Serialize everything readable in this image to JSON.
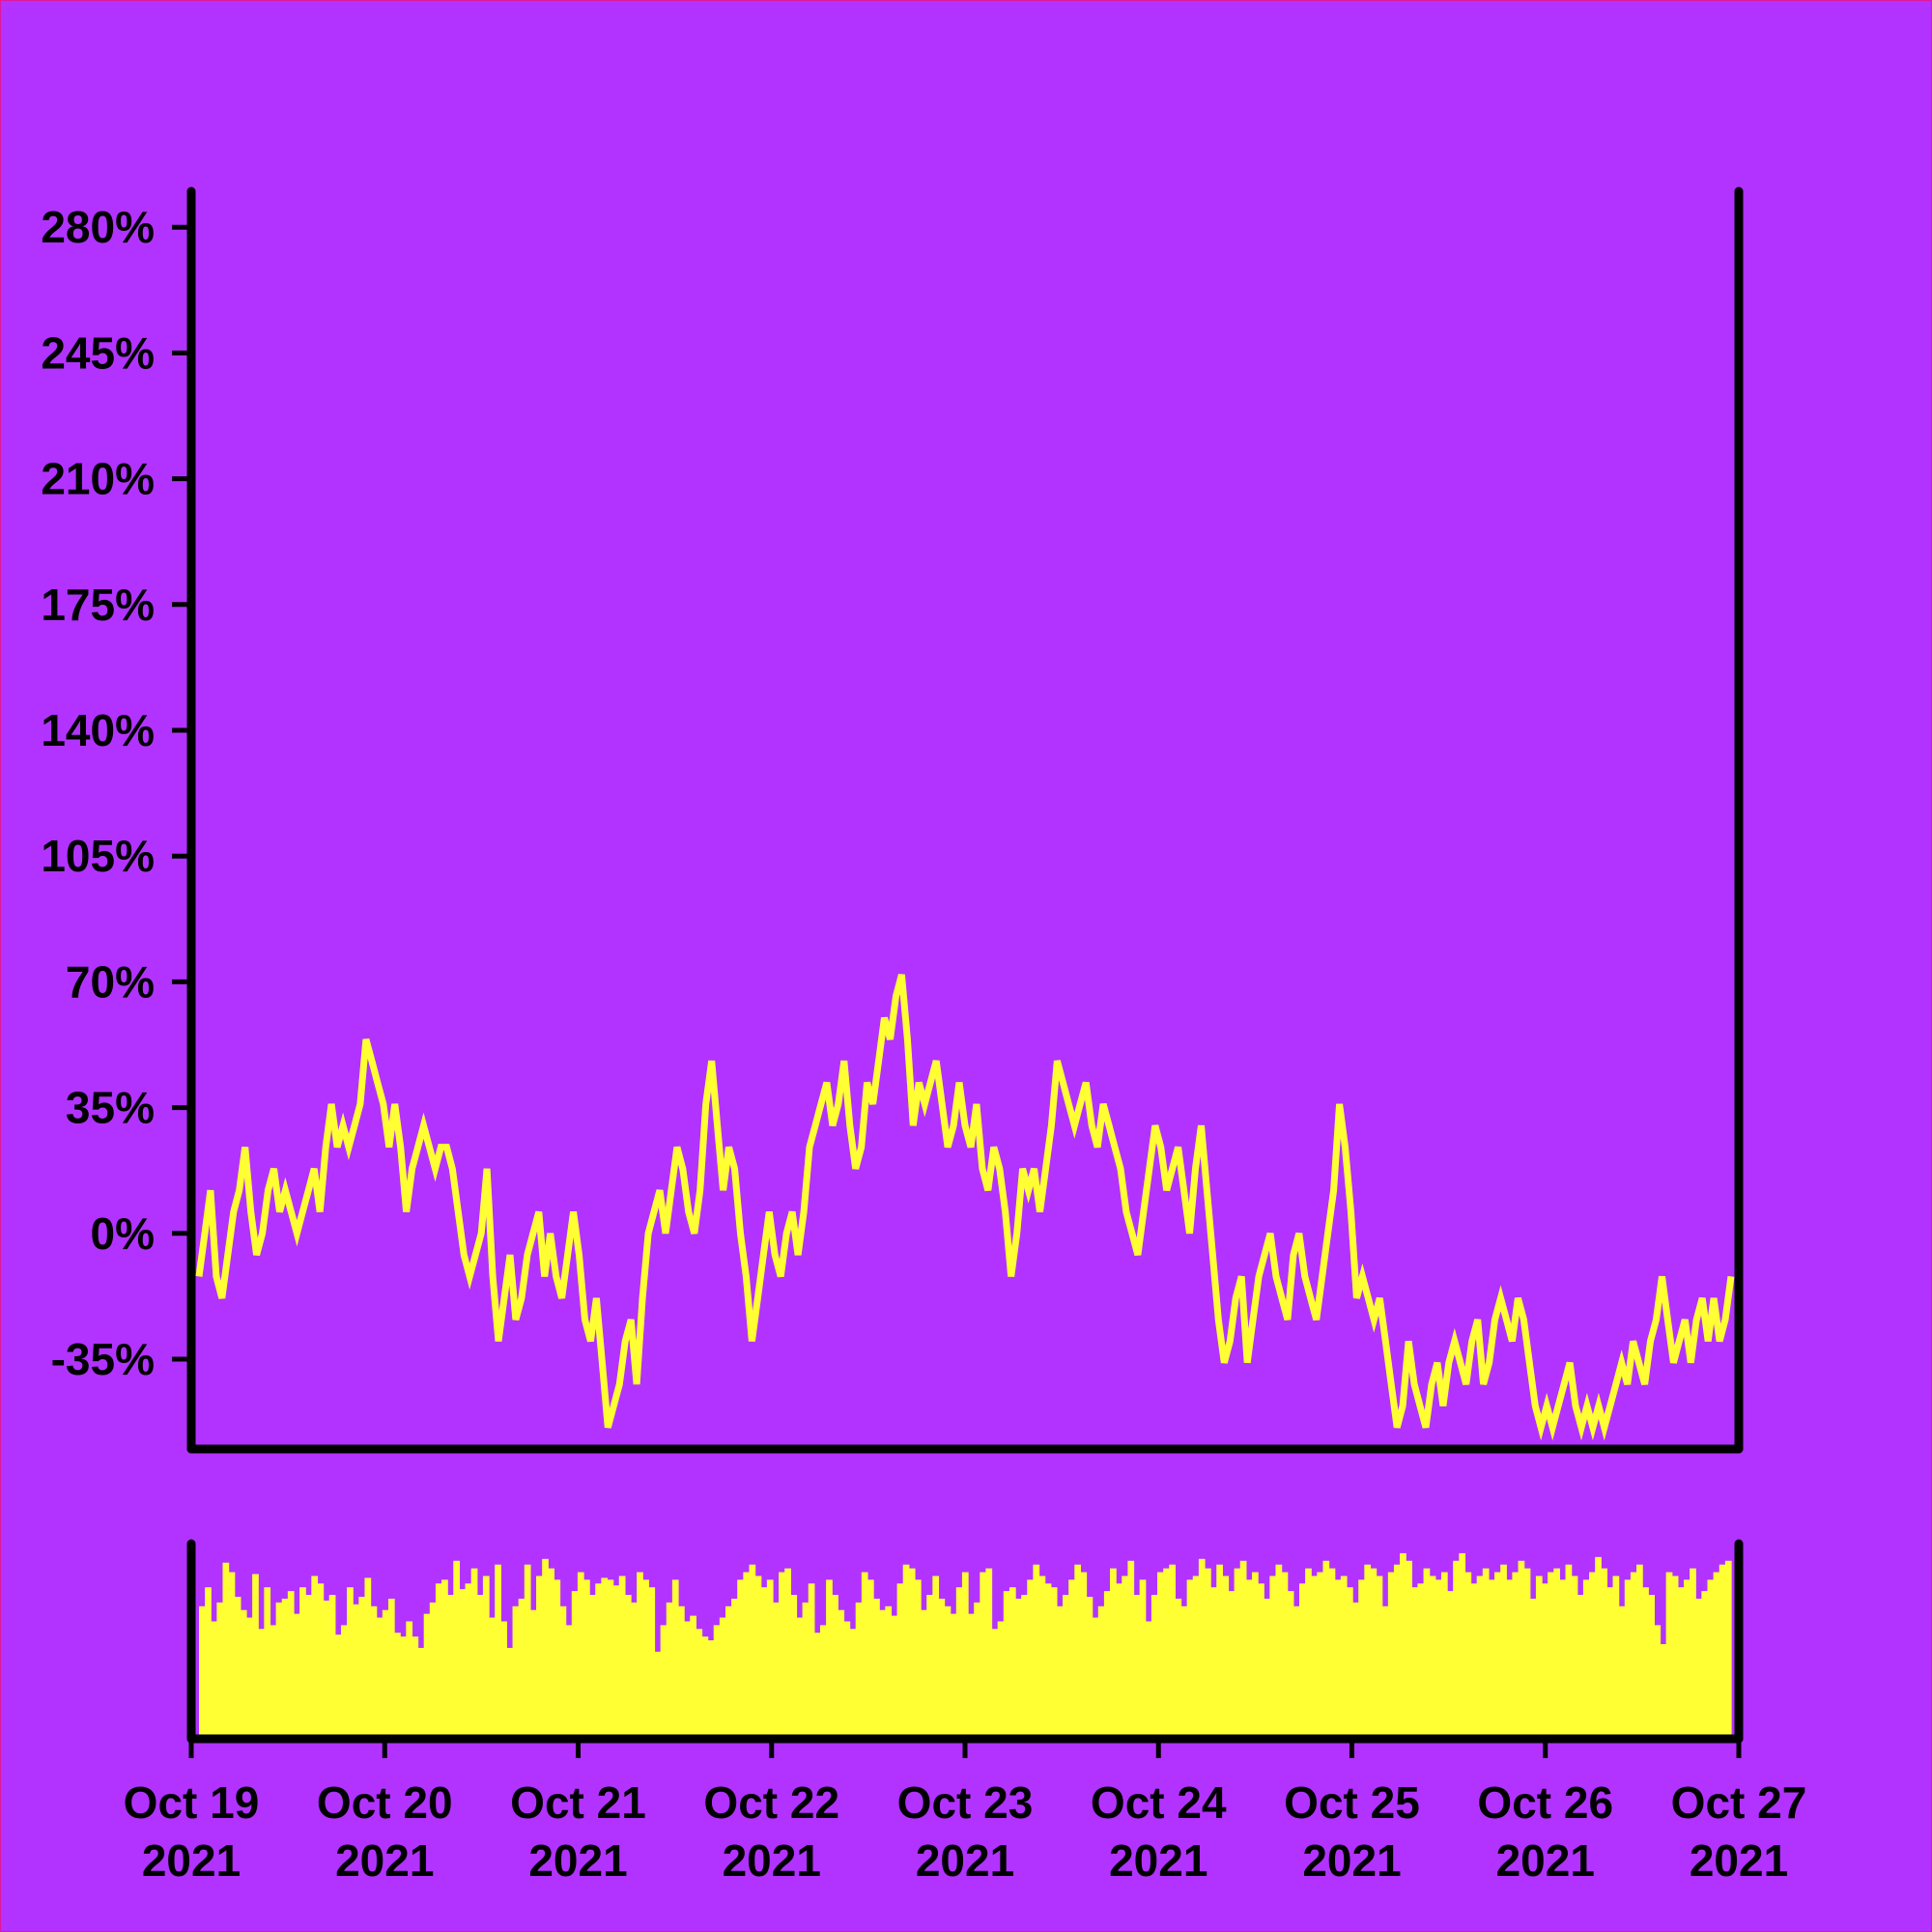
{
  "colors": {
    "background": "#b233ff",
    "line": "#ffff33",
    "volume": "#ffff33",
    "axis": "#000000"
  },
  "chart_data": [
    {
      "type": "line",
      "title": "",
      "xlabel": "",
      "ylabel": "",
      "grid": false,
      "legend": "none",
      "xlim": [
        "2021-10-19",
        "2021-10-27"
      ],
      "ylim": [
        -60,
        290
      ],
      "y_ticks": [
        -35,
        0,
        35,
        70,
        105,
        140,
        175,
        210,
        245,
        280
      ],
      "y_tick_labels": [
        "-35%",
        "0%",
        "35%",
        "70%",
        "105%",
        "140%",
        "175%",
        "210%",
        "245%",
        "280%"
      ],
      "series": [
        {
          "x_start": "2021-10-19",
          "x_end": "2021-10-27",
          "values": [
            -12,
            0,
            12,
            -12,
            -18,
            -6,
            6,
            12,
            24,
            6,
            -6,
            0,
            12,
            18,
            6,
            12,
            6,
            0,
            6,
            12,
            18,
            6,
            24,
            36,
            24,
            30,
            24,
            30,
            36,
            54,
            48,
            42,
            36,
            24,
            36,
            24,
            6,
            18,
            24,
            30,
            24,
            18,
            24,
            24,
            18,
            6,
            -6,
            -12,
            -6,
            0,
            18,
            -12,
            -30,
            -18,
            -6,
            -24,
            -18,
            -6,
            0,
            6,
            -12,
            0,
            -12,
            -18,
            -6,
            6,
            -6,
            -24,
            -30,
            -18,
            -36,
            -54,
            -48,
            -42,
            -30,
            -24,
            -42,
            -18,
            0,
            6,
            12,
            0,
            12,
            24,
            18,
            6,
            0,
            12,
            36,
            48,
            30,
            12,
            24,
            18,
            0,
            -12,
            -30,
            -18,
            -6,
            6,
            -6,
            -12,
            0,
            6,
            -6,
            6,
            24,
            30,
            36,
            42,
            30,
            36,
            48,
            30,
            18,
            24,
            42,
            36,
            48,
            60,
            54,
            66,
            72,
            54,
            30,
            42,
            36,
            42,
            48,
            36,
            24,
            30,
            42,
            30,
            24,
            36,
            18,
            12,
            24,
            18,
            6,
            -12,
            0,
            18,
            12,
            18,
            6,
            18,
            30,
            48,
            42,
            36,
            30,
            36,
            42,
            30,
            24,
            36,
            30,
            24,
            18,
            6,
            0,
            -6,
            6,
            18,
            30,
            24,
            12,
            18,
            24,
            12,
            0,
            18,
            30,
            12,
            -6,
            -24,
            -36,
            -30,
            -18,
            -12,
            -36,
            -24,
            -12,
            -6,
            0,
            -12,
            -18,
            -24,
            -6,
            0,
            -12,
            -18,
            -24,
            -12,
            0,
            12,
            36,
            24,
            6,
            -18,
            -12,
            -18,
            -24,
            -18,
            -30,
            -42,
            -54,
            -48,
            -30,
            -42,
            -48,
            -54,
            -42,
            -36,
            -48,
            -36,
            -30,
            -36,
            -42,
            -30,
            -24,
            -42,
            -36,
            -24,
            -18,
            -24,
            -30,
            -18,
            -24,
            -36,
            -48,
            -54,
            -48,
            -54,
            -48,
            -42,
            -36,
            -48,
            -54,
            -48,
            -54,
            -48,
            -54,
            -48,
            -42,
            -36,
            -42,
            -30,
            -36,
            -42,
            -30,
            -24,
            -12,
            -24,
            -36,
            -30,
            -24,
            -36,
            -24,
            -18,
            -30,
            -18,
            -30,
            -24,
            -12
          ]
        }
      ]
    },
    {
      "type": "bar",
      "title": "",
      "xlabel": "",
      "ylabel": "",
      "x_tick_labels": [
        [
          "Oct 19",
          "2021"
        ],
        [
          "Oct 20",
          "2021"
        ],
        [
          "Oct 21",
          "2021"
        ],
        [
          "Oct 22",
          "2021"
        ],
        [
          "Oct 23",
          "2021"
        ],
        [
          "Oct 24",
          "2021"
        ],
        [
          "Oct 25",
          "2021"
        ],
        [
          "Oct 26",
          "2021"
        ],
        [
          "Oct 27",
          "2021"
        ]
      ],
      "series": [
        {
          "x_start": "2021-10-19",
          "x_end": "2021-10-27",
          "values": [
            70,
            80,
            62,
            72,
            93,
            88,
            75,
            68,
            64,
            87,
            58,
            80,
            60,
            72,
            74,
            78,
            66,
            80,
            76,
            86,
            82,
            73,
            76,
            55,
            60,
            80,
            71,
            75,
            85,
            70,
            64,
            68,
            74,
            56,
            54,
            62,
            54,
            48,
            66,
            72,
            82,
            84,
            76,
            94,
            79,
            82,
            90,
            76,
            86,
            64,
            92,
            62,
            48,
            70,
            74,
            92,
            68,
            86,
            95,
            90,
            84,
            70,
            60,
            78,
            88,
            84,
            76,
            82,
            85,
            84,
            81,
            86,
            76,
            72,
            88,
            84,
            80,
            46,
            60,
            72,
            84,
            70,
            62,
            65,
            58,
            54,
            52,
            60,
            64,
            70,
            74,
            84,
            88,
            92,
            86,
            80,
            84,
            72,
            88,
            90,
            76,
            64,
            72,
            82,
            56,
            60,
            84,
            76,
            68,
            62,
            58,
            72,
            88,
            84,
            74,
            68,
            70,
            65,
            82,
            92,
            90,
            84,
            68,
            76,
            86,
            74,
            70,
            66,
            80,
            88,
            66,
            72,
            88,
            90,
            58,
            62,
            78,
            80,
            74,
            76,
            84,
            92,
            86,
            82,
            80,
            70,
            76,
            84,
            92,
            88,
            75,
            64,
            70,
            78,
            90,
            82,
            86,
            94,
            76,
            84,
            62,
            76,
            88,
            90,
            92,
            74,
            70,
            84,
            86,
            95,
            90,
            80,
            92,
            86,
            78,
            90,
            94,
            84,
            88,
            82,
            74,
            86,
            92,
            88,
            78,
            70,
            82,
            90,
            86,
            88,
            94,
            90,
            84,
            86,
            80,
            72,
            84,
            92,
            90,
            86,
            70,
            88,
            92,
            98,
            94,
            80,
            82,
            90,
            86,
            84,
            88,
            78,
            94,
            98,
            88,
            82,
            86,
            90,
            84,
            88,
            92,
            84,
            88,
            94,
            90,
            74,
            86,
            82,
            88,
            90,
            84,
            92,
            86,
            76,
            84,
            88,
            96,
            90,
            80,
            86,
            70,
            84,
            88,
            92,
            80,
            76,
            60,
            50,
            88,
            86,
            80,
            84,
            90,
            74,
            78,
            84,
            88,
            92,
            94
          ]
        }
      ]
    }
  ]
}
